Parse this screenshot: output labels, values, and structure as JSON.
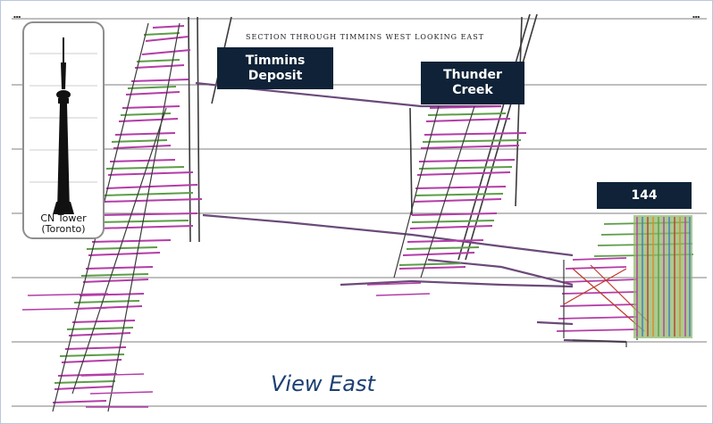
{
  "section_title": "SECTION THROUGH TIMMINS WEST LOOKING EAST",
  "labels": {
    "timmins": "Timmins\nDeposit",
    "thunder_creek": "Thunder\nCreek",
    "zone_144": "144"
  },
  "tower_caption": "CN Tower\n(Toronto)",
  "view_label": "View East",
  "colors": {
    "label_bg": "#0f2237",
    "workings_magenta": "#b43ca8",
    "workings_green": "#5c9d47",
    "workings_dark": "#3a3a3a",
    "view_text": "#1b3f72"
  }
}
